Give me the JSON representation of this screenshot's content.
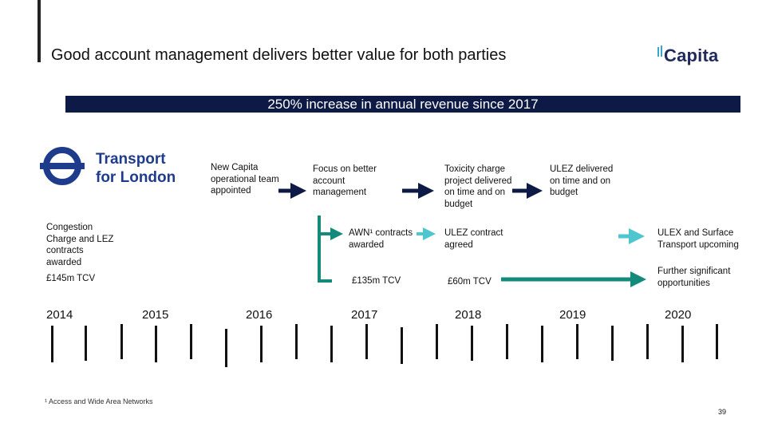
{
  "header": {
    "title": "Good account management delivers better value for both parties",
    "logo_text": "Capita"
  },
  "banner": {
    "text": "250% increase in annual revenue since 2017"
  },
  "client_logo": {
    "line1": "Transport",
    "line2": "for London"
  },
  "milestones": {
    "new_team": "New Capita operational team appointed",
    "focus": "Focus on better account management",
    "toxicity": "Toxicity charge project delivered on time and on budget",
    "ulez_delivered": "ULEZ delivered on time and on budget",
    "congestion": "Congestion Charge and LEZ contracts awarded",
    "awn": "AWN¹ contracts awarded",
    "ulez_contract": "ULEZ contract agreed",
    "ulex_surface": "ULEX and Surface Transport upcoming",
    "further": "Further significant opportunities"
  },
  "tcv": {
    "t2014": "£145m TCV",
    "t2017": "£135m TCV",
    "t2018": "£60m TCV"
  },
  "years": [
    "2014",
    "2015",
    "2016",
    "2017",
    "2018",
    "2019",
    "2020"
  ],
  "footnote": "¹ Access and Wide Area Networks",
  "page_number": "39",
  "colors": {
    "navy": "#0d1a45",
    "teal": "#138a7a",
    "light_teal": "#4dc6cf"
  }
}
